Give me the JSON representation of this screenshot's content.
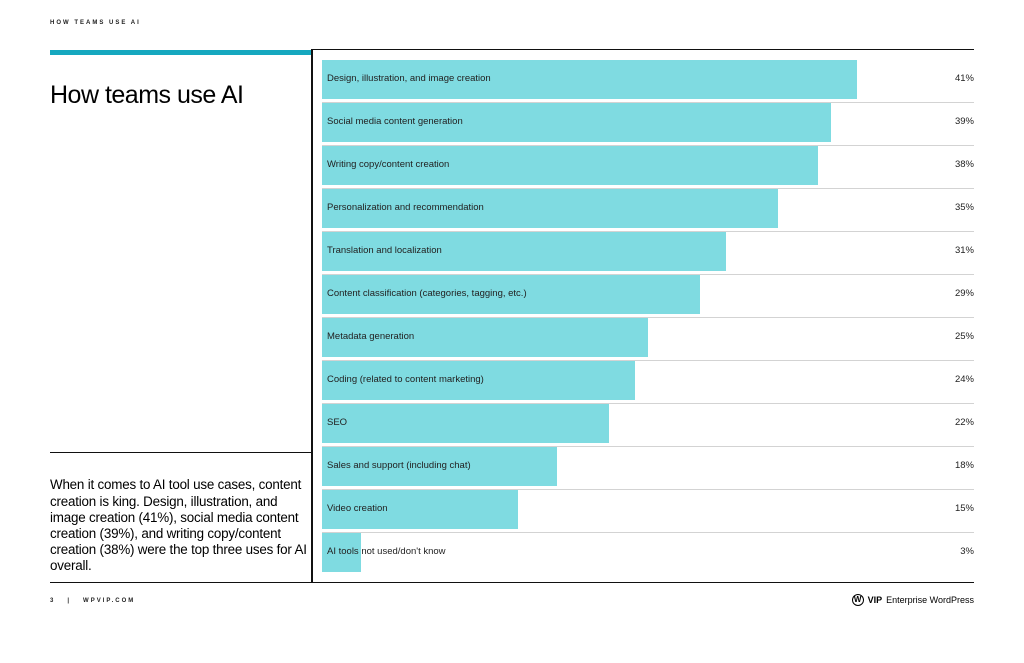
{
  "header": {
    "section_label": "HOW TEAMS USE AI"
  },
  "left_panel": {
    "title": "How teams use AI",
    "summary": "When it comes to AI tool use cases, content creation is king. Design, illustration, and image creation (41%), social media content creation (39%), and writing copy/content creation (38%) were the top three uses for AI overall."
  },
  "chart_data": {
    "type": "bar",
    "orientation": "horizontal",
    "categories": [
      "Design, illustration, and image creation",
      "Social media content generation",
      "Writing copy/content creation",
      "Personalization and recommendation",
      "Translation and localization",
      "Content classification (categories, tagging, etc.)",
      "Metadata generation",
      "Coding (related to content marketing)",
      "SEO",
      "Sales and support (including chat)",
      "Video creation",
      "AI tools not used/don't know"
    ],
    "values": [
      41,
      39,
      38,
      35,
      31,
      29,
      25,
      24,
      22,
      18,
      15,
      3
    ],
    "value_labels": [
      "41%",
      "39%",
      "38%",
      "35%",
      "31%",
      "29%",
      "25%",
      "24%",
      "22%",
      "18%",
      "15%",
      "3%"
    ],
    "xlim": [
      0,
      50
    ],
    "bar_color": "#7fdbe1"
  },
  "footer": {
    "page_number": "3",
    "separator": "|",
    "site": "WPVIP.COM",
    "brand_mark": "W",
    "brand_vip": "VIP",
    "brand_name": "Enterprise WordPress"
  },
  "colors": {
    "accent": "#15a8bf",
    "bar": "#7fdbe1",
    "rule": "#111111",
    "row_separator": "#d3d3d3"
  }
}
